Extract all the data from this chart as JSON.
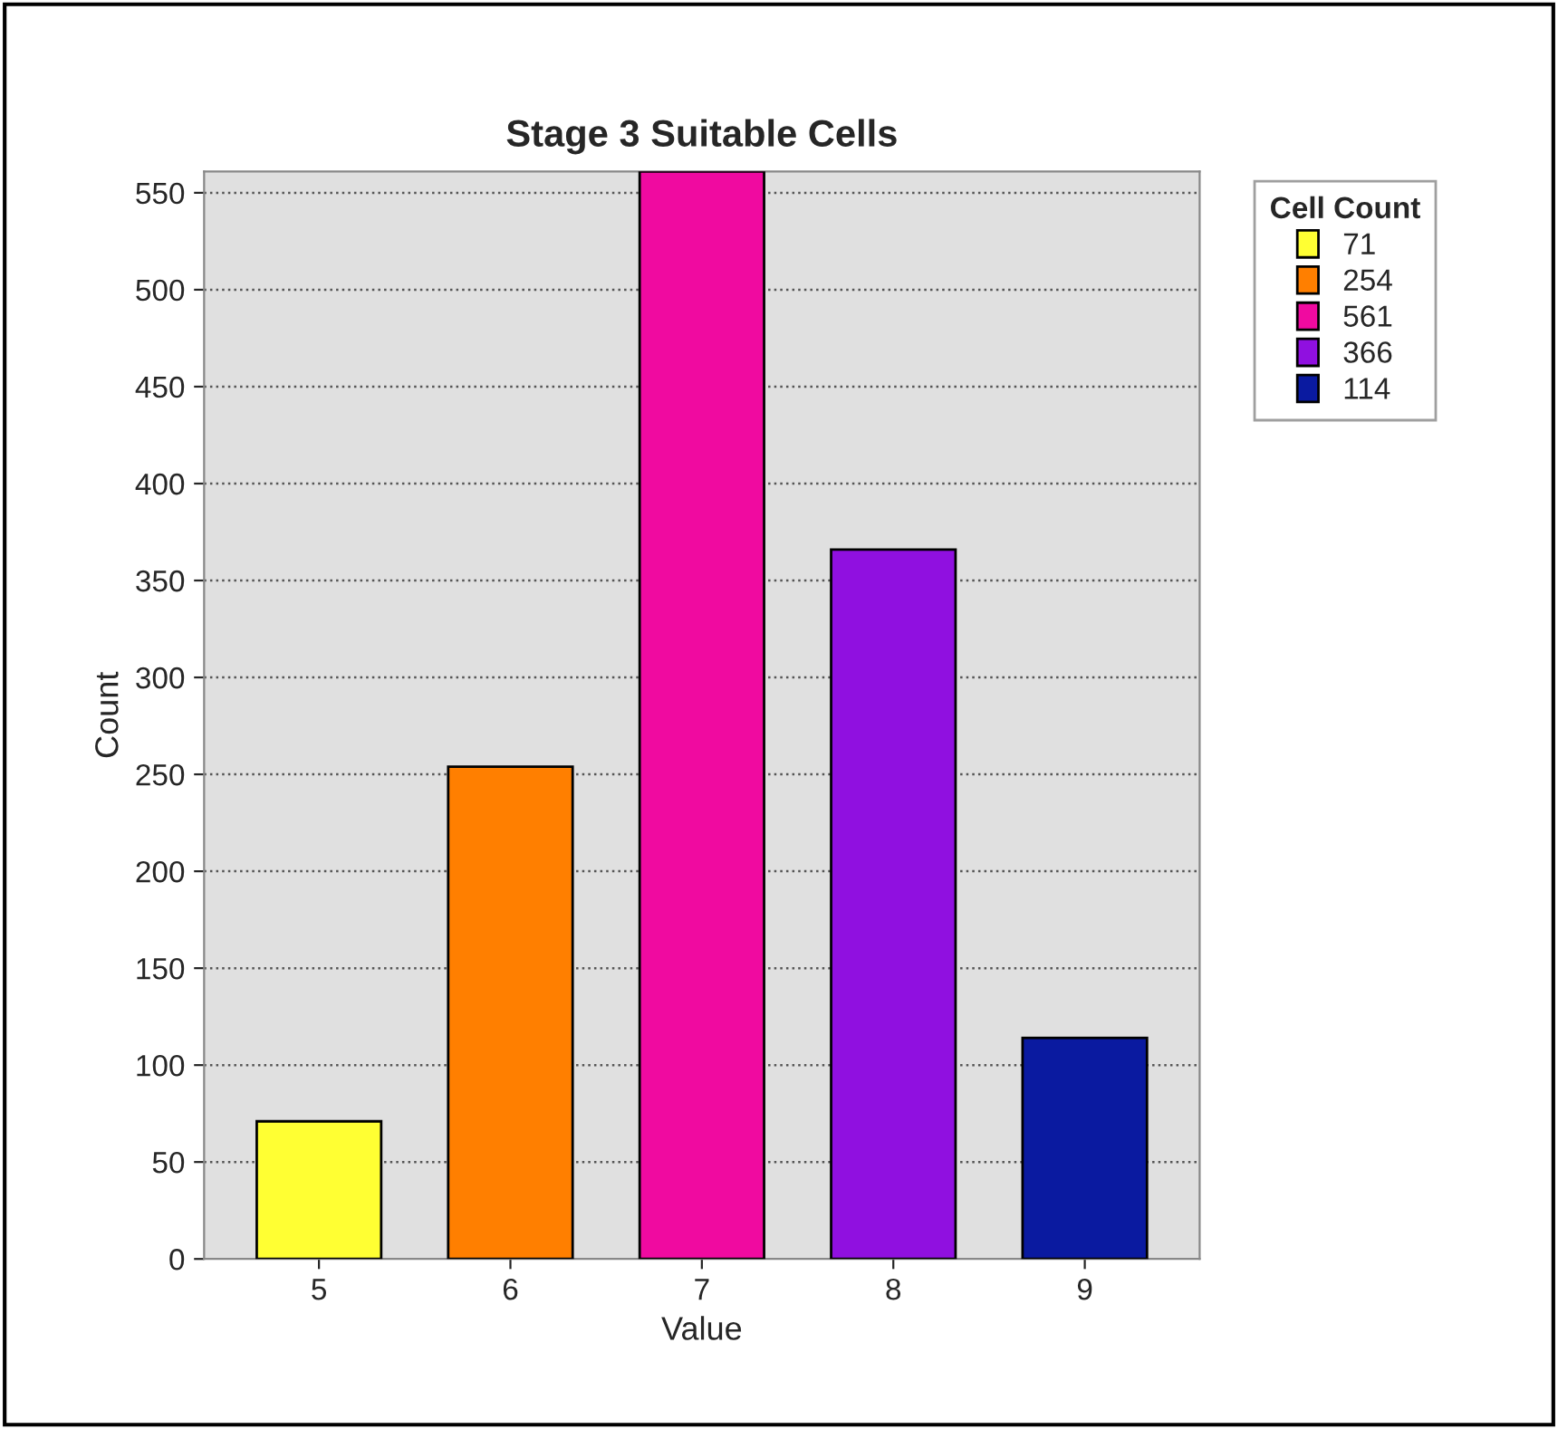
{
  "chart_data": {
    "type": "bar",
    "title": "Stage 3 Suitable Cells",
    "xlabel": "Value",
    "ylabel": "Count",
    "legend_title": "Cell Count",
    "categories": [
      "5",
      "6",
      "7",
      "8",
      "9"
    ],
    "series": [
      {
        "name": "71",
        "color": "#ffff33",
        "values": [
          71,
          null,
          null,
          null,
          null
        ]
      },
      {
        "name": "254",
        "color": "#ff7f00",
        "values": [
          null,
          254,
          null,
          null,
          null
        ]
      },
      {
        "name": "561",
        "color": "#f00aa0",
        "values": [
          null,
          null,
          561,
          null,
          null
        ]
      },
      {
        "name": "366",
        "color": "#9010e0",
        "values": [
          null,
          null,
          null,
          366,
          null
        ]
      },
      {
        "name": "114",
        "color": "#0a1aa0",
        "values": [
          null,
          null,
          null,
          null,
          114
        ]
      }
    ],
    "ylim": [
      0,
      561
    ],
    "yticks": [
      0,
      50,
      100,
      150,
      200,
      250,
      300,
      350,
      400,
      450,
      500,
      550
    ],
    "grid": "y",
    "legend": "top right"
  }
}
